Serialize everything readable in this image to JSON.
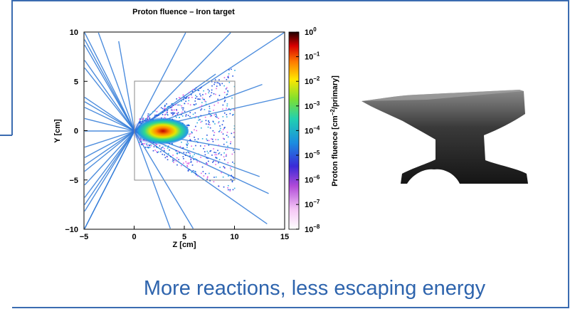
{
  "plot": {
    "title": "Proton fluence – Iron target",
    "x_label": "Z [cm]",
    "y_label": "Y [cm]",
    "x_ticks": [
      "−5",
      "0",
      "5",
      "10",
      "15"
    ],
    "y_ticks": [
      "10",
      "5",
      "0",
      "−5",
      "−10"
    ],
    "colorbar_label": {
      "start": "Proton fluence [cm",
      "exponent": "−2",
      "end": "/primary]"
    },
    "colorbar_ticks": [
      {
        "base": "10",
        "exponent": "0"
      },
      {
        "base": "10",
        "exponent": "−1"
      },
      {
        "base": "10",
        "exponent": "−2"
      },
      {
        "base": "10",
        "exponent": "−3"
      },
      {
        "base": "10",
        "exponent": "−4"
      },
      {
        "base": "10",
        "exponent": "−5"
      },
      {
        "base": "10",
        "exponent": "−6"
      },
      {
        "base": "10",
        "exponent": "−7"
      },
      {
        "base": "10",
        "exponent": "−8"
      }
    ]
  },
  "caption": "More reactions, less escaping energy"
}
